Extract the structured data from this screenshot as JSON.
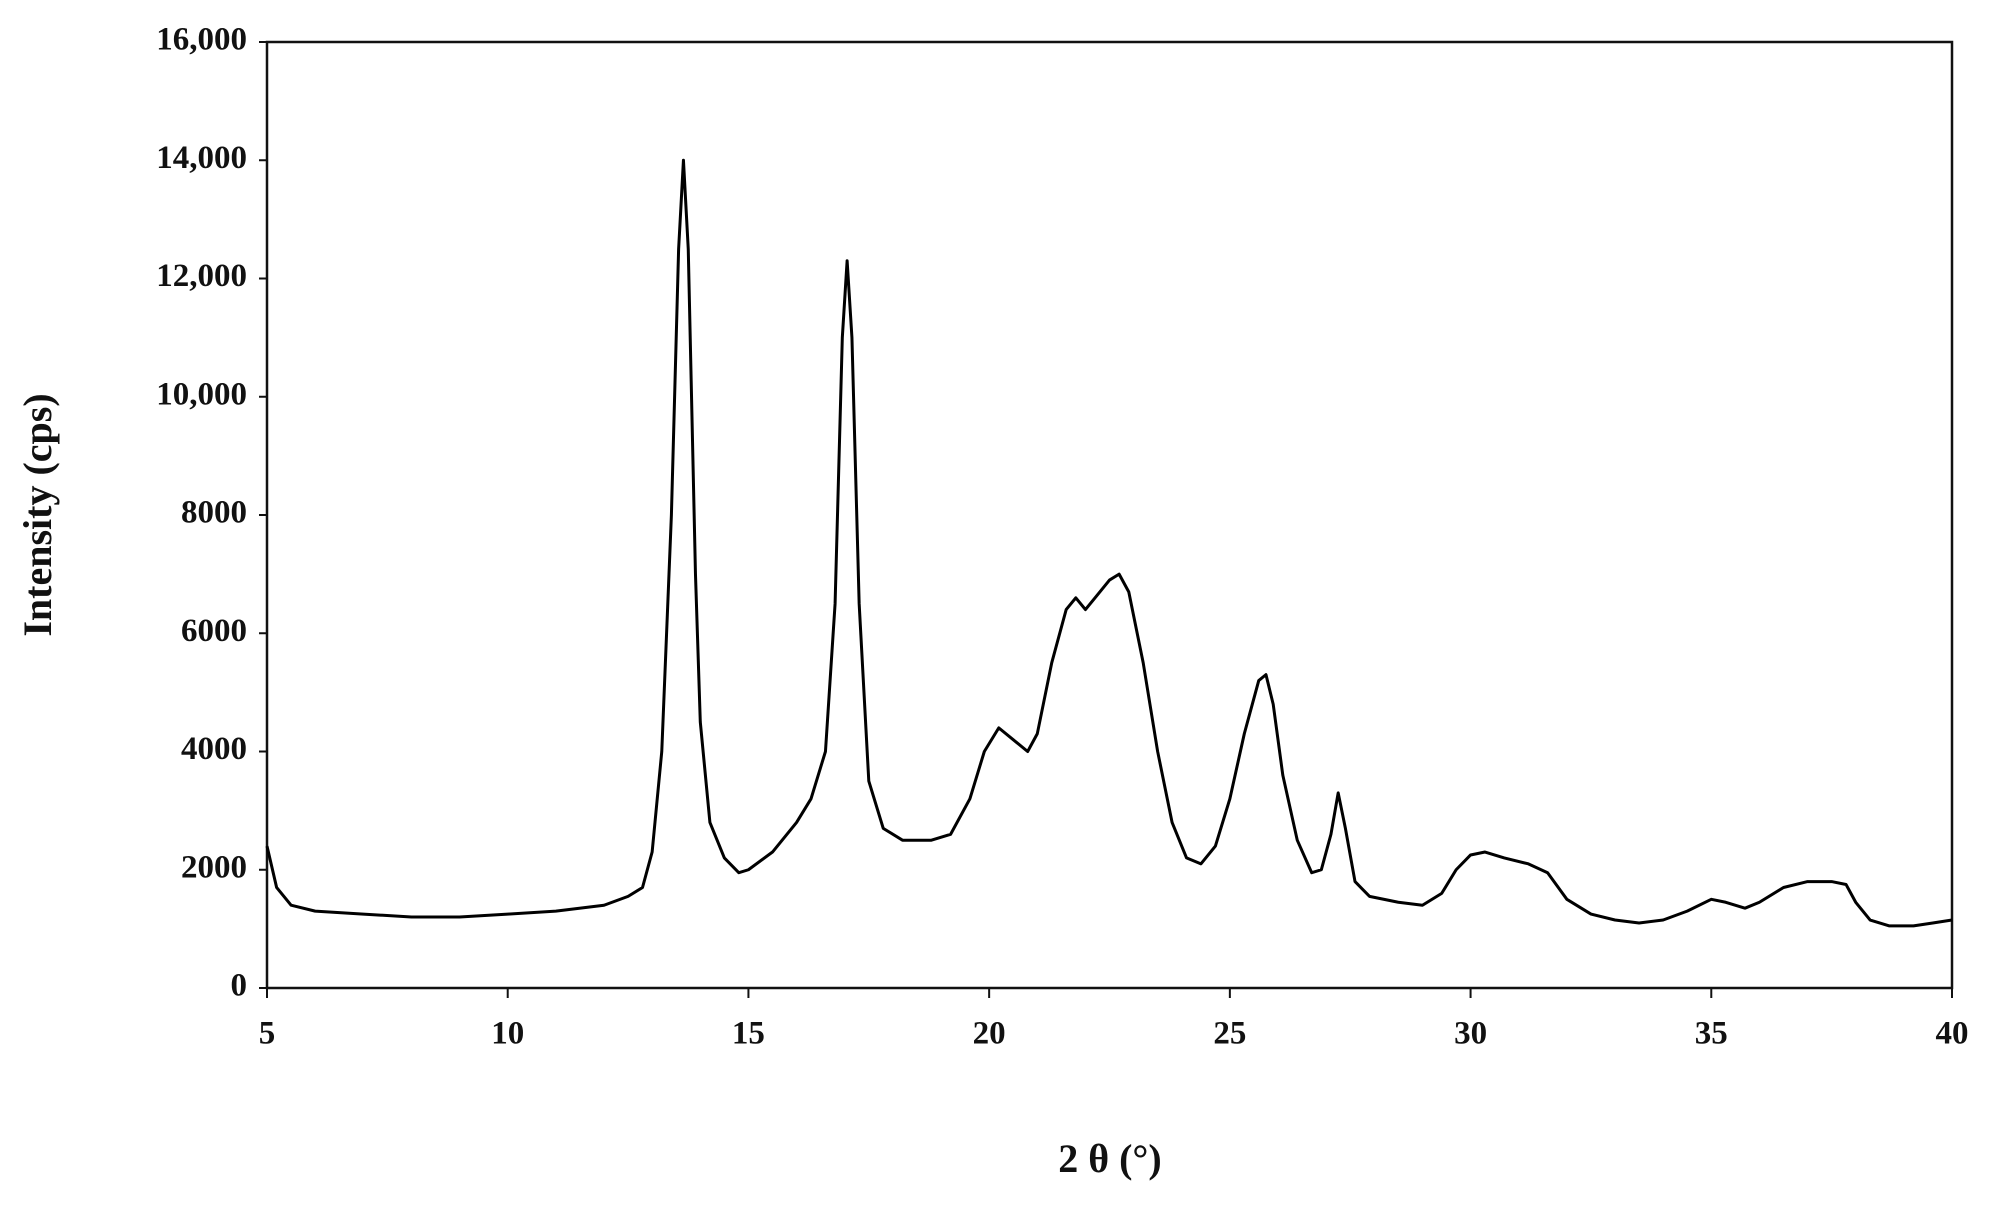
{
  "chart_data": {
    "type": "line",
    "x_label": "2 θ (°)",
    "y_label": "Intensity (cps)",
    "xlim": [
      5,
      40
    ],
    "xticks": [
      5,
      10,
      15,
      20,
      25,
      30,
      35,
      40
    ],
    "ylim": [
      0,
      16000
    ],
    "yticks": [
      0,
      2000,
      4000,
      6000,
      8000,
      {
        "value": 10000,
        "label": "10,000"
      },
      {
        "value": 12000,
        "label": "12,000"
      },
      {
        "value": 14000,
        "label": "14,000"
      },
      {
        "value": 16000,
        "label": "16,000"
      }
    ],
    "grid": false,
    "x": [
      5,
      5.2,
      5.5,
      6,
      7,
      8,
      9,
      10,
      11,
      12,
      12.5,
      12.8,
      13.0,
      13.2,
      13.4,
      13.55,
      13.65,
      13.75,
      13.9,
      14.0,
      14.2,
      14.5,
      14.8,
      15.0,
      15.5,
      16,
      16.3,
      16.6,
      16.8,
      16.95,
      17.05,
      17.15,
      17.3,
      17.5,
      17.8,
      18.2,
      18.8,
      19.2,
      19.6,
      19.9,
      20.2,
      20.5,
      20.8,
      21.0,
      21.3,
      21.6,
      21.8,
      22.0,
      22.2,
      22.5,
      22.7,
      22.9,
      23.2,
      23.5,
      23.8,
      24.1,
      24.4,
      24.7,
      25.0,
      25.3,
      25.6,
      25.75,
      25.9,
      26.1,
      26.4,
      26.7,
      26.9,
      27.1,
      27.25,
      27.4,
      27.6,
      27.9,
      28.5,
      29.0,
      29.4,
      29.7,
      30.0,
      30.3,
      30.7,
      31.2,
      31.6,
      32.0,
      32.5,
      33.0,
      33.5,
      34.0,
      34.5,
      35.0,
      35.3,
      35.7,
      36.0,
      36.5,
      37.0,
      37.5,
      37.8,
      38.0,
      38.3,
      38.7,
      39.2,
      39.6,
      40.0
    ],
    "series": [
      {
        "color": "#000000",
        "values": [
          2400,
          1700,
          1400,
          1300,
          1250,
          1200,
          1200,
          1250,
          1300,
          1400,
          1550,
          1700,
          2300,
          4000,
          8000,
          12500,
          14000,
          12500,
          7000,
          4500,
          2800,
          2200,
          1950,
          2000,
          2300,
          2800,
          3200,
          4000,
          6500,
          11000,
          12300,
          11000,
          6500,
          3500,
          2700,
          2500,
          2500,
          2600,
          3200,
          4000,
          4400,
          4200,
          4000,
          4300,
          5500,
          6400,
          6600,
          6400,
          6600,
          6900,
          7000,
          6700,
          5500,
          4000,
          2800,
          2200,
          2100,
          2400,
          3200,
          4300,
          5200,
          5300,
          4800,
          3600,
          2500,
          1950,
          2000,
          2600,
          3300,
          2700,
          1800,
          1550,
          1450,
          1400,
          1600,
          2000,
          2250,
          2300,
          2200,
          2100,
          1950,
          1500,
          1250,
          1150,
          1100,
          1150,
          1300,
          1500,
          1450,
          1350,
          1450,
          1700,
          1800,
          1800,
          1750,
          1450,
          1150,
          1050,
          1050,
          1100,
          1150
        ]
      }
    ]
  }
}
